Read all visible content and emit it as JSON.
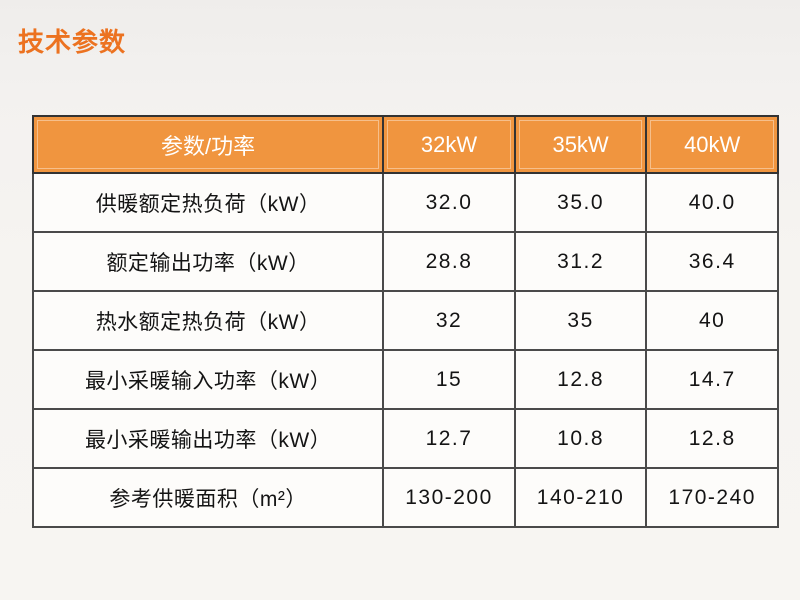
{
  "page": {
    "title": "技术参数"
  },
  "colors": {
    "title_accent": "#EC7220",
    "header_bg": "#F0953F",
    "header_text": "#FFFFFF",
    "table_border": "#3A3A3A",
    "cell_bg": "#FDFCFA",
    "page_bg": "#F5F3F0"
  },
  "table": {
    "headers": [
      "参数/功率",
      "32kW",
      "35kW",
      "40kW"
    ],
    "rows": [
      {
        "label": "供暖额定热负荷（kW）",
        "values": [
          "32.0",
          "35.0",
          "40.0"
        ]
      },
      {
        "label": "额定输出功率（kW）",
        "values": [
          "28.8",
          "31.2",
          "36.4"
        ]
      },
      {
        "label": "热水额定热负荷（kW）",
        "values": [
          "32",
          "35",
          "40"
        ]
      },
      {
        "label": "最小采暖输入功率（kW）",
        "values": [
          "15",
          "12.8",
          "14.7"
        ]
      },
      {
        "label": "最小采暖输出功率（kW）",
        "values": [
          "12.7",
          "10.8",
          "12.8"
        ]
      },
      {
        "label": "参考供暖面积（m²）",
        "values": [
          "130-200",
          "140-210",
          "170-240"
        ]
      }
    ]
  }
}
